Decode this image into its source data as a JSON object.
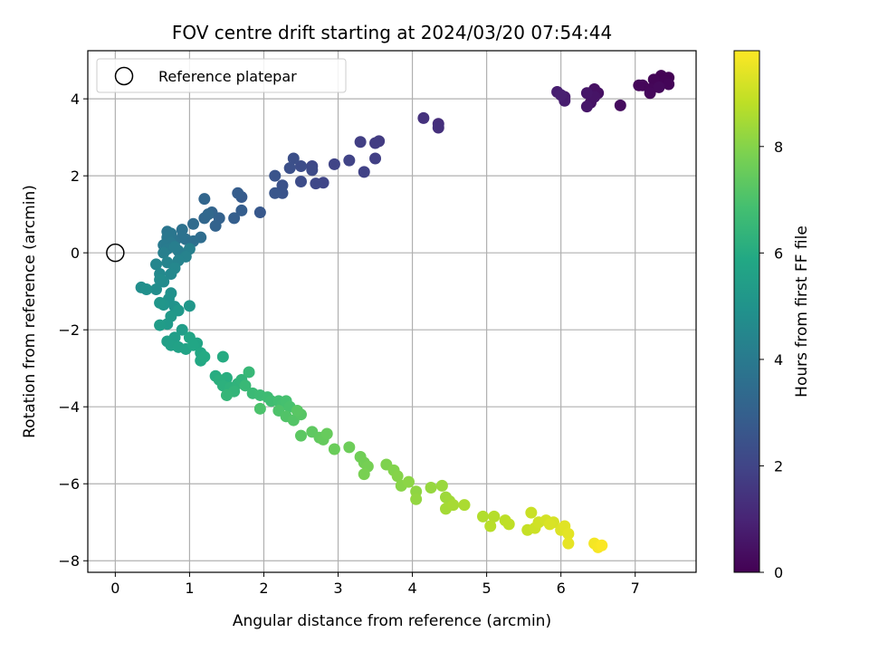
{
  "chart_data": {
    "type": "scatter",
    "title": "FOV centre drift starting at 2024/03/20 07:54:44",
    "xlabel": "Angular distance from reference (arcmin)",
    "ylabel": "Rotation from reference (arcmin)",
    "xlim": [
      -0.37,
      7.82
    ],
    "ylim": [
      -8.3,
      5.25
    ],
    "xticks": [
      0,
      1,
      2,
      3,
      4,
      5,
      6,
      7
    ],
    "yticks": [
      -8,
      -6,
      -4,
      -2,
      0,
      2,
      4
    ],
    "grid": true,
    "legend": {
      "placement": "top-left",
      "entries": [
        {
          "label": "Reference platepar",
          "marker": "open-circle"
        }
      ]
    },
    "reference_point": {
      "x": 0,
      "y": 0
    },
    "colorbar": {
      "label": "Hours from first FF file",
      "colormap": "viridis",
      "range": [
        0,
        9.8
      ],
      "ticks": [
        0,
        2,
        4,
        6,
        8
      ]
    },
    "points": [
      [
        7.45,
        4.55,
        0.02
      ],
      [
        7.35,
        4.6,
        0.04
      ],
      [
        7.4,
        4.45,
        0.06
      ],
      [
        7.3,
        4.4,
        0.08
      ],
      [
        7.25,
        4.5,
        0.1
      ],
      [
        7.45,
        4.38,
        0.12
      ],
      [
        7.1,
        4.35,
        0.14
      ],
      [
        7.2,
        4.25,
        0.16
      ],
      [
        7.05,
        4.35,
        0.18
      ],
      [
        7.2,
        4.15,
        0.2
      ],
      [
        7.32,
        4.3,
        0.22
      ],
      [
        6.8,
        3.83,
        0.3
      ],
      [
        6.5,
        4.15,
        0.42
      ],
      [
        6.45,
        4.25,
        0.46
      ],
      [
        6.4,
        3.9,
        0.5
      ],
      [
        6.45,
        4.05,
        0.54
      ],
      [
        6.35,
        4.15,
        0.58
      ],
      [
        6.35,
        3.8,
        0.62
      ],
      [
        6.05,
        4.05,
        0.74
      ],
      [
        6.05,
        3.95,
        0.78
      ],
      [
        5.95,
        4.18,
        0.82
      ],
      [
        6.0,
        4.1,
        0.86
      ],
      [
        4.35,
        3.35,
        1.3
      ],
      [
        4.35,
        3.25,
        1.35
      ],
      [
        4.15,
        3.5,
        1.4
      ],
      [
        3.55,
        2.9,
        1.7
      ],
      [
        3.5,
        2.85,
        1.75
      ],
      [
        3.3,
        2.88,
        1.8
      ],
      [
        3.5,
        2.45,
        1.85
      ],
      [
        3.35,
        2.1,
        1.9
      ],
      [
        3.15,
        2.4,
        1.95
      ],
      [
        2.95,
        2.3,
        2.0
      ],
      [
        2.8,
        1.82,
        2.05
      ],
      [
        2.7,
        1.8,
        2.1
      ],
      [
        2.65,
        2.25,
        2.15
      ],
      [
        2.65,
        2.15,
        2.2
      ],
      [
        2.5,
        1.85,
        2.25
      ],
      [
        2.5,
        2.25,
        2.3
      ],
      [
        2.4,
        2.45,
        2.35
      ],
      [
        2.35,
        2.2,
        2.4
      ],
      [
        2.25,
        1.75,
        2.45
      ],
      [
        2.25,
        1.55,
        2.5
      ],
      [
        2.15,
        2.0,
        2.55
      ],
      [
        2.15,
        1.55,
        2.6
      ],
      [
        1.95,
        1.05,
        2.7
      ],
      [
        1.7,
        1.45,
        2.8
      ],
      [
        1.65,
        1.55,
        2.85
      ],
      [
        1.7,
        1.1,
        2.9
      ],
      [
        1.6,
        0.9,
        2.95
      ],
      [
        1.4,
        0.9,
        3.05
      ],
      [
        1.35,
        0.7,
        3.1
      ],
      [
        1.3,
        1.05,
        3.15
      ],
      [
        1.2,
        1.4,
        3.2
      ],
      [
        1.2,
        0.9,
        3.25
      ],
      [
        1.25,
        1.0,
        3.3
      ],
      [
        1.05,
        0.75,
        3.4
      ],
      [
        1.15,
        0.4,
        3.5
      ],
      [
        1.05,
        0.3,
        3.55
      ],
      [
        0.95,
        0.35,
        3.6
      ],
      [
        0.9,
        0.6,
        3.65
      ],
      [
        0.9,
        0.4,
        3.7
      ],
      [
        0.8,
        0.3,
        3.75
      ],
      [
        0.7,
        0.55,
        3.8
      ],
      [
        0.75,
        0.5,
        3.85
      ],
      [
        0.7,
        0.4,
        3.9
      ],
      [
        0.75,
        0.25,
        3.95
      ],
      [
        0.65,
        0.2,
        4.0
      ],
      [
        0.7,
        0.1,
        4.05
      ],
      [
        0.85,
        0.05,
        4.1
      ],
      [
        0.8,
        0.15,
        4.15
      ],
      [
        0.65,
        0.0,
        4.2
      ],
      [
        1.0,
        0.1,
        4.25
      ],
      [
        0.95,
        -0.1,
        4.3
      ],
      [
        0.85,
        -0.2,
        4.35
      ],
      [
        0.7,
        -0.25,
        4.4
      ],
      [
        0.55,
        -0.3,
        4.45
      ],
      [
        0.8,
        -0.4,
        4.5
      ],
      [
        0.75,
        -0.55,
        4.55
      ],
      [
        0.6,
        -0.55,
        4.6
      ],
      [
        0.65,
        -0.75,
        4.65
      ],
      [
        0.6,
        -0.7,
        4.7
      ],
      [
        0.55,
        -0.95,
        4.75
      ],
      [
        0.35,
        -0.9,
        4.8
      ],
      [
        0.42,
        -0.95,
        4.85
      ],
      [
        0.75,
        -1.05,
        4.9
      ],
      [
        0.72,
        -1.2,
        4.95
      ],
      [
        0.8,
        -1.4,
        5.0
      ],
      [
        0.65,
        -1.35,
        5.05
      ],
      [
        0.6,
        -1.3,
        5.1
      ],
      [
        1.0,
        -1.38,
        5.15
      ],
      [
        0.85,
        -1.5,
        5.2
      ],
      [
        0.75,
        -1.65,
        5.25
      ],
      [
        0.7,
        -1.85,
        5.3
      ],
      [
        0.6,
        -1.88,
        5.35
      ],
      [
        0.9,
        -2.0,
        5.4
      ],
      [
        0.8,
        -2.2,
        5.45
      ],
      [
        0.7,
        -2.3,
        5.5
      ],
      [
        0.75,
        -2.4,
        5.55
      ],
      [
        0.85,
        -2.45,
        5.6
      ],
      [
        0.95,
        -2.5,
        5.65
      ],
      [
        1.1,
        -2.35,
        5.7
      ],
      [
        1.0,
        -2.2,
        5.75
      ],
      [
        1.05,
        -2.4,
        5.8
      ],
      [
        1.15,
        -2.6,
        5.85
      ],
      [
        1.15,
        -2.8,
        5.9
      ],
      [
        1.2,
        -2.7,
        5.95
      ],
      [
        1.45,
        -2.7,
        6.0
      ],
      [
        1.35,
        -3.2,
        6.05
      ],
      [
        1.5,
        -3.25,
        6.1
      ],
      [
        1.4,
        -3.3,
        6.15
      ],
      [
        1.45,
        -3.45,
        6.2
      ],
      [
        1.55,
        -3.5,
        6.25
      ],
      [
        1.65,
        -3.4,
        6.3
      ],
      [
        1.7,
        -3.3,
        6.35
      ],
      [
        1.6,
        -3.6,
        6.4
      ],
      [
        1.5,
        -3.7,
        6.45
      ],
      [
        1.8,
        -3.1,
        6.5
      ],
      [
        1.75,
        -3.45,
        6.55
      ],
      [
        1.85,
        -3.65,
        6.6
      ],
      [
        1.95,
        -3.7,
        6.65
      ],
      [
        2.05,
        -3.75,
        6.7
      ],
      [
        2.1,
        -3.85,
        6.75
      ],
      [
        2.2,
        -3.85,
        6.8
      ],
      [
        2.25,
        -3.95,
        6.85
      ],
      [
        2.3,
        -3.85,
        6.9
      ],
      [
        2.35,
        -4.0,
        6.95
      ],
      [
        1.95,
        -4.05,
        7.0
      ],
      [
        2.2,
        -4.1,
        7.05
      ],
      [
        2.3,
        -4.25,
        7.1
      ],
      [
        2.4,
        -4.35,
        7.15
      ],
      [
        2.5,
        -4.2,
        7.2
      ],
      [
        2.45,
        -4.1,
        7.25
      ],
      [
        2.5,
        -4.75,
        7.3
      ],
      [
        2.65,
        -4.65,
        7.35
      ],
      [
        2.75,
        -4.8,
        7.4
      ],
      [
        2.8,
        -4.85,
        7.45
      ],
      [
        2.85,
        -4.7,
        7.5
      ],
      [
        2.95,
        -5.1,
        7.55
      ],
      [
        3.15,
        -5.05,
        7.6
      ],
      [
        3.3,
        -5.3,
        7.65
      ],
      [
        3.35,
        -5.45,
        7.7
      ],
      [
        3.4,
        -5.55,
        7.75
      ],
      [
        3.35,
        -5.75,
        7.8
      ],
      [
        3.65,
        -5.5,
        7.9
      ],
      [
        3.75,
        -5.65,
        7.95
      ],
      [
        3.8,
        -5.8,
        8.0
      ],
      [
        3.85,
        -6.05,
        8.05
      ],
      [
        3.95,
        -5.95,
        8.1
      ],
      [
        4.05,
        -6.2,
        8.15
      ],
      [
        4.05,
        -6.4,
        8.2
      ],
      [
        4.25,
        -6.1,
        8.25
      ],
      [
        4.4,
        -6.05,
        8.3
      ],
      [
        4.45,
        -6.35,
        8.35
      ],
      [
        4.5,
        -6.45,
        8.4
      ],
      [
        4.45,
        -6.65,
        8.45
      ],
      [
        4.55,
        -6.55,
        8.5
      ],
      [
        4.7,
        -6.55,
        8.55
      ],
      [
        4.95,
        -6.85,
        8.65
      ],
      [
        5.1,
        -6.85,
        8.7
      ],
      [
        5.05,
        -7.1,
        8.75
      ],
      [
        5.25,
        -6.95,
        8.8
      ],
      [
        5.3,
        -7.05,
        8.85
      ],
      [
        5.55,
        -7.2,
        8.95
      ],
      [
        5.6,
        -6.75,
        9.0
      ],
      [
        5.65,
        -7.15,
        9.05
      ],
      [
        5.7,
        -7.0,
        9.1
      ],
      [
        5.8,
        -6.95,
        9.15
      ],
      [
        5.9,
        -7.0,
        9.2
      ],
      [
        5.85,
        -7.05,
        9.25
      ],
      [
        6.0,
        -7.2,
        9.3
      ],
      [
        6.05,
        -7.1,
        9.35
      ],
      [
        6.1,
        -7.3,
        9.4
      ],
      [
        6.1,
        -7.55,
        9.45
      ],
      [
        6.45,
        -7.55,
        9.65
      ],
      [
        6.5,
        -7.65,
        9.7
      ],
      [
        6.55,
        -7.6,
        9.75
      ]
    ]
  }
}
